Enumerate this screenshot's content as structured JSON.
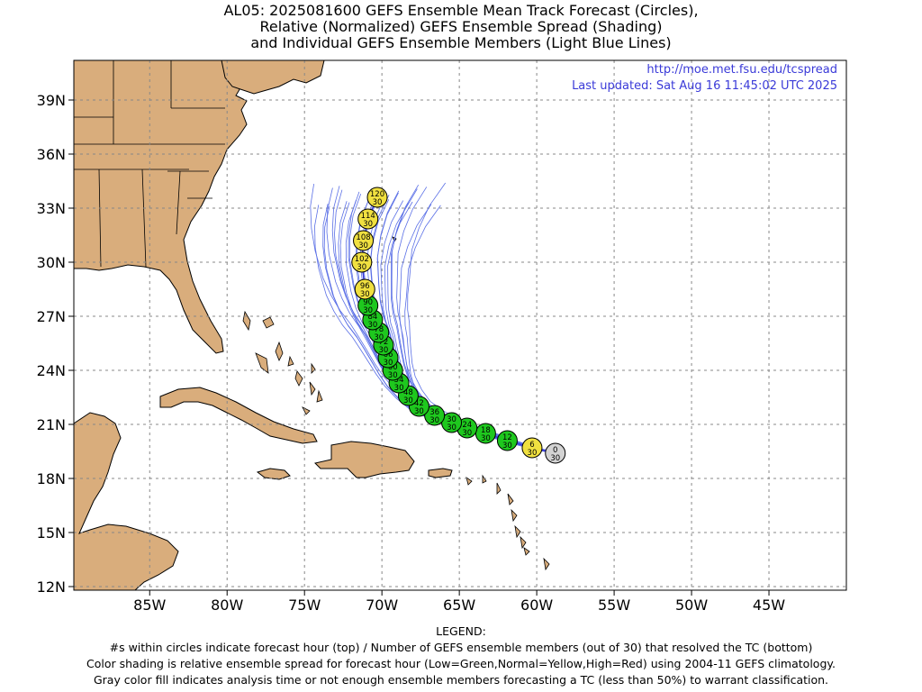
{
  "title": {
    "line1": "AL05: 2025081600 GEFS Ensemble Mean Track Forecast (Circles),",
    "line2": "Relative (Normalized) GEFS Ensemble Spread (Shading)",
    "line3": "and Individual GEFS Ensemble Members (Light Blue Lines)"
  },
  "credit": {
    "url": "http://moe.met.fsu.edu/tcspread",
    "updated": "Last updated: Sat Aug 16 11:45:02 UTC 2025"
  },
  "axes": {
    "lat_labels": [
      "39N",
      "36N",
      "33N",
      "30N",
      "27N",
      "24N",
      "21N",
      "18N",
      "15N",
      "12N"
    ],
    "lon_labels": [
      "85W",
      "80W",
      "75W",
      "70W",
      "65W",
      "60W",
      "55W",
      "50W",
      "45W"
    ]
  },
  "colors": {
    "land": "#d9ad7c",
    "ocean": "#ffffff",
    "member_track": "#5a6fe6",
    "low_spread": "#1ec81e",
    "normal_spread": "#f0e040",
    "gray_fill": "#d3d3d3",
    "credit_text": "#3a3ad8"
  },
  "forecast_points": [
    {
      "hour": "0",
      "members": "30",
      "lon": -58.8,
      "lat": 19.4,
      "spread": "gray"
    },
    {
      "hour": "6",
      "members": "30",
      "lon": -60.3,
      "lat": 19.7,
      "spread": "normal"
    },
    {
      "hour": "12",
      "members": "30",
      "lon": -61.9,
      "lat": 20.1,
      "spread": "low"
    },
    {
      "hour": "18",
      "members": "30",
      "lon": -63.3,
      "lat": 20.5,
      "spread": "low"
    },
    {
      "hour": "24",
      "members": "30",
      "lon": -64.5,
      "lat": 20.8,
      "spread": "low"
    },
    {
      "hour": "30",
      "members": "30",
      "lon": -65.5,
      "lat": 21.1,
      "spread": "low"
    },
    {
      "hour": "36",
      "members": "30",
      "lon": -66.6,
      "lat": 21.5,
      "spread": "low"
    },
    {
      "hour": "42",
      "members": "30",
      "lon": -67.6,
      "lat": 22.0,
      "spread": "low"
    },
    {
      "hour": "48",
      "members": "30",
      "lon": -68.3,
      "lat": 22.6,
      "spread": "low"
    },
    {
      "hour": "54",
      "members": "30",
      "lon": -68.9,
      "lat": 23.3,
      "spread": "low"
    },
    {
      "hour": "60",
      "members": "30",
      "lon": -69.3,
      "lat": 24.0,
      "spread": "low"
    },
    {
      "hour": "66",
      "members": "30",
      "lon": -69.6,
      "lat": 24.7,
      "spread": "low"
    },
    {
      "hour": "72",
      "members": "30",
      "lon": -69.9,
      "lat": 25.4,
      "spread": "low"
    },
    {
      "hour": "78",
      "members": "30",
      "lon": -70.2,
      "lat": 26.1,
      "spread": "low"
    },
    {
      "hour": "84",
      "members": "30",
      "lon": -70.6,
      "lat": 26.8,
      "spread": "low"
    },
    {
      "hour": "90",
      "members": "30",
      "lon": -70.9,
      "lat": 27.6,
      "spread": "low"
    },
    {
      "hour": "96",
      "members": "30",
      "lon": -71.1,
      "lat": 28.5,
      "spread": "normal"
    },
    {
      "hour": "102",
      "members": "30",
      "lon": -71.3,
      "lat": 30.0,
      "spread": "normal"
    },
    {
      "hour": "108",
      "members": "30",
      "lon": -71.2,
      "lat": 31.2,
      "spread": "normal"
    },
    {
      "hour": "114",
      "members": "30",
      "lon": -70.9,
      "lat": 32.4,
      "spread": "normal"
    },
    {
      "hour": "120",
      "members": "30",
      "lon": -70.3,
      "lat": 33.6,
      "spread": "normal"
    }
  ],
  "legend": {
    "heading": "LEGEND:",
    "line1": "#s within circles indicate forecast hour (top) / Number of GEFS ensemble members (out of 30) that resolved the TC (bottom)",
    "line2": "Color shading is relative ensemble spread for forecast hour (Low=Green,Normal=Yellow,High=Red) using 2004-11 GEFS climatology.",
    "line3": "Gray color fill indicates analysis time or not enough ensemble members forecasting a TC (less than 50%) to warrant classification."
  }
}
